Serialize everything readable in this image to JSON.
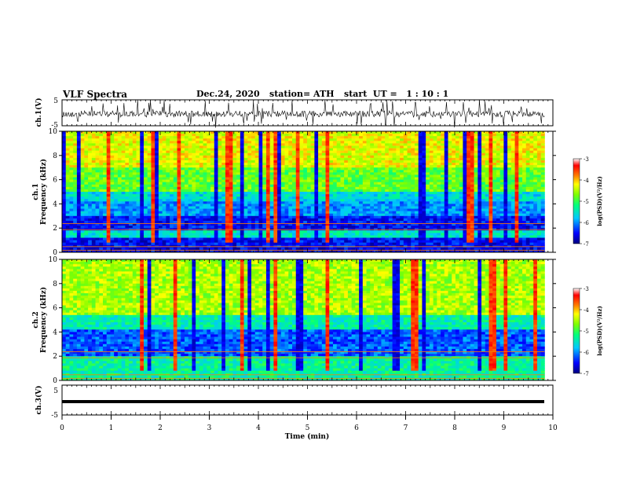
{
  "header": {
    "title": "VLF Spectra",
    "date": "Dec.24, 2020",
    "station": "station= ATH",
    "start": "start  UT =   1 : 10 : 1"
  },
  "chart_data": [
    {
      "type": "line",
      "panel": "ch1-waveform",
      "ylabel": "ch.1(V)",
      "ylim": [
        -5,
        5
      ],
      "ytick_labels": [
        "5",
        "-5"
      ],
      "xlim": [
        0,
        10
      ]
    },
    {
      "type": "heatmap",
      "panel": "ch1-spectrogram",
      "ylabel": "ch.1\nFrequency (kHz)",
      "ylim": [
        0,
        10
      ],
      "ytick_labels": [
        "0",
        "2",
        "4",
        "6",
        "8",
        "10"
      ],
      "xlim": [
        0,
        10
      ],
      "data_end_min": 9.83,
      "colorbar": {
        "label": "log(PSD)(V²/Hz)",
        "range": [
          -7,
          -3
        ],
        "tick_labels": [
          "-3",
          "-4",
          "-5",
          "-6",
          "-7"
        ],
        "colors": [
          "#000080",
          "#0000ff",
          "#00c8ff",
          "#00ff80",
          "#80ff00",
          "#ffff00",
          "#ff8000",
          "#ff0000",
          "#ffffff"
        ]
      }
    },
    {
      "type": "heatmap",
      "panel": "ch2-spectrogram",
      "ylabel": "ch.2\nFrequency (kHz)",
      "ylim": [
        0,
        10
      ],
      "ytick_labels": [
        "0",
        "2",
        "4",
        "6",
        "8",
        "10"
      ],
      "xlim": [
        0,
        10
      ],
      "data_end_min": 9.83,
      "colorbar": {
        "label": "log(PSD)(V²/Hz)",
        "range": [
          -7,
          -3
        ],
        "tick_labels": [
          "-3",
          "-4",
          "-5",
          "-6",
          "-7"
        ]
      }
    },
    {
      "type": "line",
      "panel": "ch3-waveform",
      "ylabel": "ch.3(V)",
      "ylim": [
        -5,
        5
      ],
      "ytick_labels": [
        "5",
        "-5"
      ],
      "xlim": [
        0,
        10
      ],
      "xlabel": "Time (min)",
      "xtick_labels": [
        "0",
        "1",
        "2",
        "3",
        "4",
        "5",
        "6",
        "7",
        "8",
        "9",
        "10"
      ]
    }
  ]
}
